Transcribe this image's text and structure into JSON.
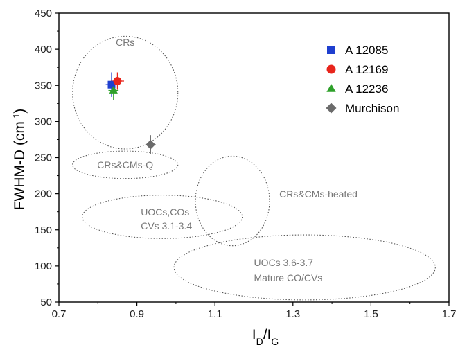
{
  "chart_data": {
    "type": "scatter",
    "xlabel": "I_D/I_G",
    "ylabel": "FWHM-D (cm⁻¹)",
    "xlim": [
      0.7,
      1.7
    ],
    "ylim": [
      50,
      450
    ],
    "xticks": [
      0.7,
      0.9,
      1.1,
      1.3,
      1.5,
      1.7
    ],
    "yticks": [
      50,
      100,
      150,
      200,
      250,
      300,
      350,
      400,
      450
    ],
    "grid": false,
    "legend_position": "top-right",
    "series": [
      {
        "name": "A 12085",
        "marker": "square",
        "color": "#1f3fcf",
        "x": 0.835,
        "y": 351,
        "xerr": 0.015,
        "yerr": 17
      },
      {
        "name": "A 12169",
        "marker": "circle",
        "color": "#e8251c",
        "x": 0.85,
        "y": 356,
        "xerr": 0.017,
        "yerr": 12
      },
      {
        "name": "A 12236",
        "marker": "triangle",
        "color": "#2ea02a",
        "x": 0.84,
        "y": 343,
        "xerr": 0.013,
        "yerr": 13
      },
      {
        "name": "Murchison",
        "marker": "diamond",
        "color": "#6b6b6b",
        "x": 0.935,
        "y": 268,
        "xerr": 0.013,
        "yerr": 13
      }
    ],
    "regions": [
      {
        "label": "CRs",
        "cx": 0.87,
        "cy": 340,
        "rx": 0.135,
        "ry": 78
      },
      {
        "label": "CRs&CMs-Q",
        "cx": 0.87,
        "cy": 240,
        "rx": 0.135,
        "ry": 19
      },
      {
        "label": "UOCs,COs\nCVs 3.1-3.4",
        "cx": 0.965,
        "cy": 168,
        "rx": 0.205,
        "ry": 30
      },
      {
        "label": "CRs&CMs-heated",
        "cx": 1.145,
        "cy": 190,
        "rx": 0.095,
        "ry": 62
      },
      {
        "label": "UOCs 3.6-3.7\nMature CO/CVs",
        "cx": 1.33,
        "cy": 98,
        "rx": 0.335,
        "ry": 45
      }
    ]
  },
  "axis": {
    "x_title_main": "I",
    "x_title_sub1": "D",
    "x_title_sep": "/I",
    "x_title_sub2": "G",
    "y_title_main": "FWHM-D (cm",
    "y_title_sup": "-1",
    "y_title_end": ")"
  }
}
